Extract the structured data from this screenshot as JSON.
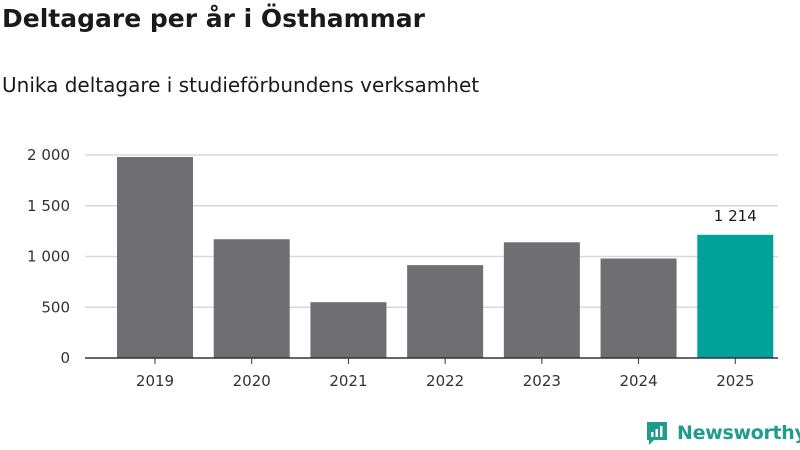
{
  "header": {
    "title": "Deltagare per år i Östhammar",
    "subtitle": "Unika deltagare i studieförbundens verksamhet"
  },
  "brand": {
    "name": "Newsworthy",
    "icon": "newsworthy-logo-icon",
    "color": "#1f9c8e"
  },
  "colors": {
    "bar_default": "#6e6e73",
    "bar_highlight": "#00a199",
    "grid": "#d9d9d9",
    "axis": "#333333"
  },
  "chart_data": {
    "type": "bar",
    "title": "Deltagare per år i Östhammar",
    "subtitle": "Unika deltagare i studieförbundens verksamhet",
    "xlabel": "",
    "ylabel": "",
    "categories": [
      "2019",
      "2020",
      "2021",
      "2022",
      "2023",
      "2024",
      "2025"
    ],
    "values": [
      1980,
      1170,
      550,
      915,
      1140,
      980,
      1214
    ],
    "highlight_index": 6,
    "data_labels": [
      {
        "index": 6,
        "text": "1 214"
      }
    ],
    "ylim": [
      0,
      2000
    ],
    "yticks": [
      0,
      500,
      1000,
      1500,
      2000
    ],
    "ytick_labels": [
      "0",
      "500",
      "1 000",
      "1 500",
      "2 000"
    ],
    "grid": true,
    "legend": "none"
  }
}
